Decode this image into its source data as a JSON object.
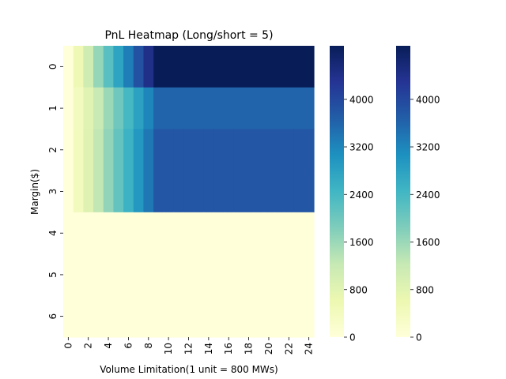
{
  "chart_data": {
    "type": "heatmap",
    "title": "PnL Heatmap (Long/short = 5)",
    "xlabel": "Volume Limitation(1 unit = 800 MWs)",
    "ylabel": "Margin($)",
    "x": [
      0,
      1,
      2,
      3,
      4,
      5,
      6,
      7,
      8,
      9,
      10,
      11,
      12,
      13,
      14,
      15,
      16,
      17,
      18,
      19,
      20,
      21,
      22,
      23,
      24
    ],
    "x_tick_labels": [
      "0",
      "2",
      "4",
      "6",
      "8",
      "10",
      "12",
      "14",
      "16",
      "18",
      "20",
      "22",
      "24"
    ],
    "y": [
      0,
      1,
      2,
      3,
      4,
      5,
      6
    ],
    "y_tick_labels": [
      "0",
      "1",
      "2",
      "3",
      "4",
      "5",
      "6"
    ],
    "colormap": "YlGnBu",
    "vmin": 0,
    "vmax": 4900,
    "values": [
      [
        0,
        550,
        1100,
        1650,
        2200,
        2750,
        3300,
        3850,
        4400,
        4950,
        4950,
        4950,
        4950,
        4950,
        4950,
        4950,
        4950,
        4950,
        4950,
        4950,
        4950,
        4950,
        4950,
        4950,
        4950
      ],
      [
        0,
        400,
        800,
        1200,
        1600,
        2000,
        2400,
        2800,
        3200,
        3600,
        3600,
        3600,
        3600,
        3600,
        3600,
        3600,
        3600,
        3600,
        3600,
        3600,
        3600,
        3600,
        3600,
        3600,
        3600
      ],
      [
        0,
        420,
        840,
        1260,
        1680,
        2100,
        2520,
        2940,
        3360,
        3780,
        3780,
        3780,
        3780,
        3780,
        3780,
        3780,
        3780,
        3780,
        3780,
        3780,
        3780,
        3780,
        3780,
        3780,
        3780
      ],
      [
        0,
        420,
        840,
        1260,
        1680,
        2100,
        2520,
        2940,
        3360,
        3780,
        3780,
        3780,
        3780,
        3780,
        3780,
        3780,
        3780,
        3780,
        3780,
        3780,
        3780,
        3780,
        3780,
        3780,
        3780
      ],
      [
        0,
        0,
        0,
        0,
        0,
        0,
        0,
        0,
        0,
        0,
        0,
        0,
        0,
        0,
        0,
        0,
        0,
        0,
        0,
        0,
        0,
        0,
        0,
        0,
        0
      ],
      [
        0,
        0,
        0,
        0,
        0,
        0,
        0,
        0,
        0,
        0,
        0,
        0,
        0,
        0,
        0,
        0,
        0,
        0,
        0,
        0,
        0,
        0,
        0,
        0,
        0
      ],
      [
        0,
        0,
        0,
        0,
        0,
        0,
        0,
        0,
        0,
        0,
        0,
        0,
        0,
        0,
        0,
        0,
        0,
        0,
        0,
        0,
        0,
        0,
        0,
        0,
        0
      ]
    ],
    "colorbars": [
      {
        "ticks": [
          0,
          800,
          1600,
          2400,
          3200,
          4000
        ],
        "tick_labels": [
          "0",
          "800",
          "1600",
          "2400",
          "3200",
          "4000"
        ]
      },
      {
        "ticks": [
          0,
          800,
          1600,
          2400,
          3200,
          4000
        ],
        "tick_labels": [
          "0",
          "800",
          "1600",
          "2400",
          "3200",
          "4000"
        ]
      }
    ]
  }
}
